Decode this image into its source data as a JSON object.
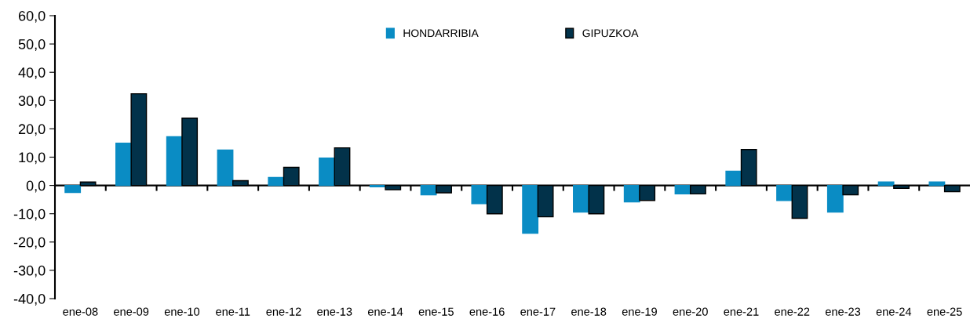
{
  "chart_data": {
    "type": "bar",
    "categories": [
      "ene-08",
      "ene-09",
      "ene-10",
      "ene-11",
      "ene-12",
      "ene-13",
      "ene-14",
      "ene-15",
      "ene-16",
      "ene-17",
      "ene-18",
      "ene-19",
      "ene-20",
      "ene-21",
      "ene-22",
      "ene-23",
      "ene-24",
      "ene-25"
    ],
    "series": [
      {
        "name": "HONDARRIBIA",
        "color": "#0a8cc4",
        "values": [
          -2.5,
          14.9,
          17.2,
          12.5,
          2.8,
          9.7,
          -0.5,
          -3.3,
          -6.4,
          -16.9,
          -9.4,
          -5.8,
          -3.0,
          5.0,
          -5.3,
          -9.4,
          1.2,
          1.2
        ]
      },
      {
        "name": "GIPUZKOA",
        "color": "#02324a",
        "values": [
          1.2,
          32.4,
          23.8,
          1.7,
          6.4,
          13.3,
          -1.5,
          -2.6,
          -10.0,
          -11.1,
          -10.0,
          -5.3,
          -3.0,
          12.7,
          -11.6,
          -3.3,
          -1.0,
          -2.2
        ]
      }
    ],
    "ylim": [
      -40,
      60
    ],
    "yticks": [
      {
        "value": -40,
        "label": "-40,0"
      },
      {
        "value": -30,
        "label": "-30,0"
      },
      {
        "value": -20,
        "label": "-20,0"
      },
      {
        "value": -10,
        "label": "-10,0"
      },
      {
        "value": 0,
        "label": "0,0"
      },
      {
        "value": 10,
        "label": "10,0"
      },
      {
        "value": 20,
        "label": "20,0"
      },
      {
        "value": 30,
        "label": "30,0"
      },
      {
        "value": 40,
        "label": "40,0"
      },
      {
        "value": 50,
        "label": "50,0"
      },
      {
        "value": 60,
        "label": "60,0"
      }
    ],
    "legend": "top"
  }
}
